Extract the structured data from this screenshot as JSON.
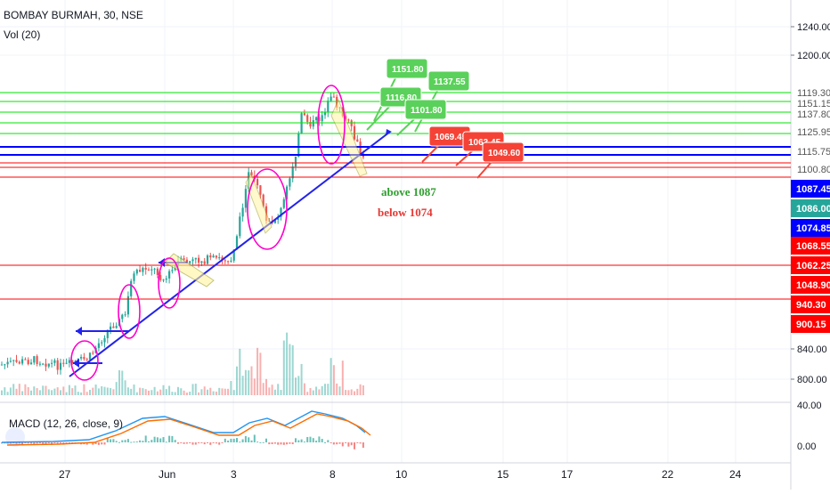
{
  "header": {
    "symbol_title": "BOMBAY BURMAH, 30, NSE",
    "volume_label": "Vol (20)",
    "macd_label": "MACD (12, 26, close, 9)"
  },
  "colors": {
    "up": "#26a69a",
    "down": "#ef5350",
    "green_line": "#00e600",
    "red_line": "#ff0000",
    "blue_line": "#0000ff",
    "trend_blue": "#2222ee",
    "circle_magenta": "#ff00cc",
    "macd_line": "#2196f3",
    "signal_line": "#ff6d00",
    "text_green": "#2e9e2e",
    "text_red": "#e53935",
    "axis_text": "#131722",
    "grid": "#f0f3fa"
  },
  "chart_data": {
    "type": "candlestick",
    "price_axis_ticks": [
      "1240.00",
      "1200.00",
      "840.00",
      "800.00"
    ],
    "volume_axis_ticks": [
      "40.00",
      "0.00"
    ],
    "x_tick_labels": [
      "27",
      "Jun",
      "3",
      "8",
      "10",
      "15",
      "17",
      "22",
      "24"
    ],
    "horizontal_levels": [
      {
        "label": "1119.30",
        "color": "green"
      },
      {
        "label": "1151.15",
        "color": "green"
      },
      {
        "label": "1137.80",
        "color": "green"
      },
      {
        "label": "1125.95",
        "color": "green"
      },
      {
        "label": "1115.75",
        "color": "blue"
      },
      {
        "label": "1100.80",
        "color": "red"
      },
      {
        "label": "1062.25",
        "color": "red"
      },
      {
        "label": "940.30",
        "color": "red"
      }
    ],
    "price_tags": [
      {
        "label": "1087.45",
        "bg": "#0000ff"
      },
      {
        "label": "1086.00",
        "bg": "#26a69a"
      },
      {
        "label": "1074.85",
        "bg": "#0000ff"
      },
      {
        "label": "1068.55",
        "bg": "#ff0000"
      },
      {
        "label": "1062.25",
        "bg": "#ff0000"
      },
      {
        "label": "1048.90",
        "bg": "#ff0000"
      },
      {
        "label": "940.30",
        "bg": "#ff0000"
      },
      {
        "label": "900.15",
        "bg": "#ff0000"
      }
    ],
    "targets_up": [
      "1151.80",
      "1137.55",
      "1116.80",
      "1101.80"
    ],
    "targets_down": [
      "1069.45",
      "1063.45",
      "1049.60"
    ],
    "annotations": [
      "above 1087",
      "below 1074"
    ]
  }
}
